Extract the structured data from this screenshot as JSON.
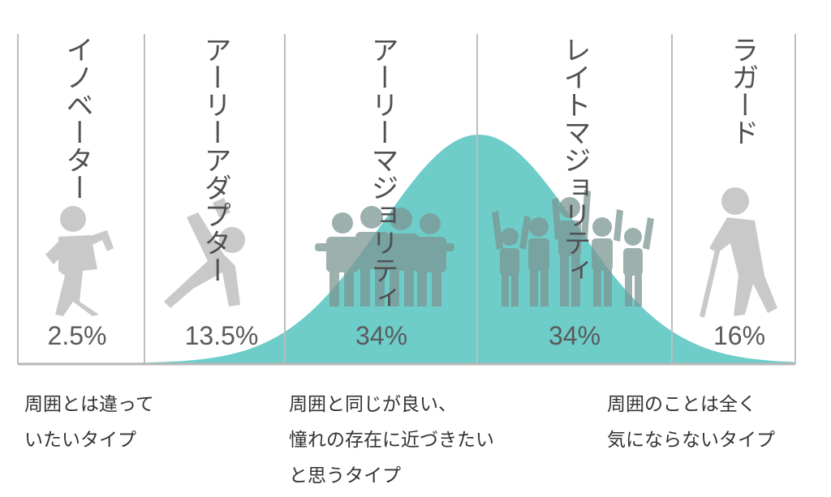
{
  "chart_data": {
    "type": "area",
    "x": [
      "イノベーター",
      "アーリーアダプター",
      "アーリーマジョリティ",
      "レイトマジョリティ",
      "ラガード"
    ],
    "values": [
      2.5,
      13.5,
      34,
      34,
      16
    ],
    "value_labels": [
      "2.5%",
      "13.5%",
      "34%",
      "34%",
      "16%"
    ],
    "title": "",
    "xlabel": "",
    "ylabel": "",
    "grid": false,
    "legend": "none"
  },
  "colors": {
    "curve_fill": "#6ecdc9",
    "divider": "#bdbdbd",
    "baseline": "#b7b7b7",
    "person_icon": "#c9c9c9",
    "person_icon_on_curve": "#7c9694"
  },
  "icons": [
    "dancing-person-icon",
    "stretching-person-icon",
    "group-arms-around-icon",
    "group-arms-raised-icon",
    "elderly-person-with-cane-icon"
  ],
  "descriptions": [
    [
      "周囲とは違って",
      "いたいタイプ"
    ],
    [
      "周囲と同じが良い、",
      "憧れの存在に近づきたい",
      "と思うタイプ"
    ],
    [
      "周囲のことは全く",
      "気にならないタイプ"
    ]
  ]
}
